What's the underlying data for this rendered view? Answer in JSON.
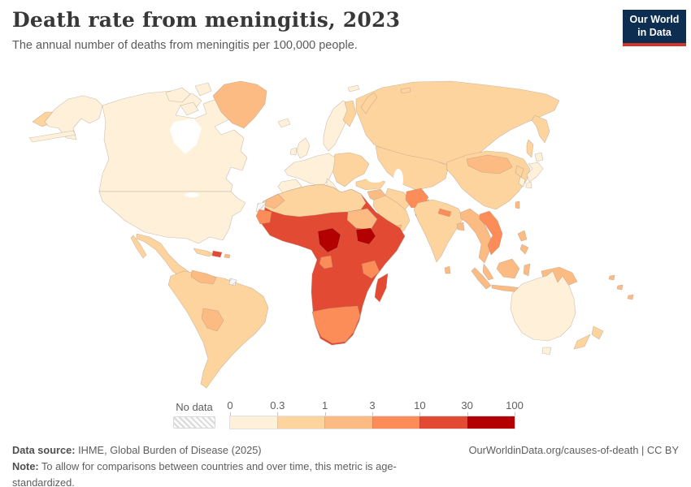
{
  "header": {
    "logo_line1": "Our World",
    "logo_line2": "in Data",
    "logo_bg": "#0d2d51",
    "logo_accent": "#d0352c"
  },
  "chart_data": {
    "type": "choropleth",
    "title": "Death rate from meningitis, 2023",
    "subtitle": "The annual number of deaths from meningitis per 100,000 people.",
    "unit": "deaths from meningitis per 100,000 people",
    "year": "2023",
    "no_data_label": "No data",
    "scale_ticks": [
      "0",
      "0.3",
      "1",
      "3",
      "10",
      "30",
      "100"
    ],
    "bin_labels": [
      "0-0.3",
      "0.3-1",
      "1-3",
      "3-10",
      "10-30",
      "30-100"
    ],
    "bin_colors": [
      "#fef0d9",
      "#fdd49e",
      "#fdbb84",
      "#fc8d59",
      "#e34a33",
      "#b30000"
    ],
    "legend_position": "bottom",
    "region_bins": {
      "chukotka": 1,
      "alaska": 0,
      "canada": 0,
      "arctic-islands": 0,
      "greenland": 2,
      "iceland": 0,
      "usa": 0,
      "mexico": 1,
      "central-america": 2,
      "cuba": 1,
      "hispaniola": 4,
      "puerto-rico": 2,
      "south-america": 1,
      "venezuela": 2,
      "bolivia-paraguay": 2,
      "french-guiana": -1,
      "uk": 0,
      "ireland": 0,
      "scandinavia": 0,
      "finland": 1,
      "svalbard": 0,
      "europe-west": 0,
      "iberia": 0,
      "italy": 0,
      "europe-east": 1,
      "russia": 1,
      "turkey": 1,
      "iraq-syria": 2,
      "saudi-arabia": 1,
      "yemen": 2,
      "iran": 1,
      "central-asia": 1,
      "afghanistan": 3,
      "pakistan": 3,
      "india": 1,
      "nepal": 3,
      "bangladesh": 2,
      "sri-lanka": 2,
      "china": 1,
      "mongolia": 2,
      "north-korea": 1,
      "south-korea": 0,
      "japan": 0,
      "taiwan": 2,
      "myanmar-thailand": 2,
      "laos-vietnam": 3,
      "malay-peninsula": 2,
      "sumatra": 2,
      "borneo": 2,
      "java": 2,
      "sulawesi": 2,
      "new-guinea": 2,
      "philippines": 2,
      "australia": 0,
      "new-zealand": 1,
      "fiji": 2,
      "north-africa": 1,
      "morocco": 2,
      "western-sahara": -1,
      "mauritania-senegal": 3,
      "sudan": 2,
      "africa-central": 4,
      "nigeria": 5,
      "south-sudan": 5,
      "gabon": 3,
      "tanzania": 3,
      "southern-africa": 3,
      "madagascar": 4
    }
  },
  "footer": {
    "source_label": "Data source:",
    "source_text": "IHME, Global Burden of Disease (2025)",
    "note_label": "Note:",
    "note_text": "To allow for comparisons between countries and over time, this metric is age-standardized.",
    "link": "OurWorldinData.org/causes-of-death",
    "separator": " | ",
    "license": "CC BY"
  }
}
